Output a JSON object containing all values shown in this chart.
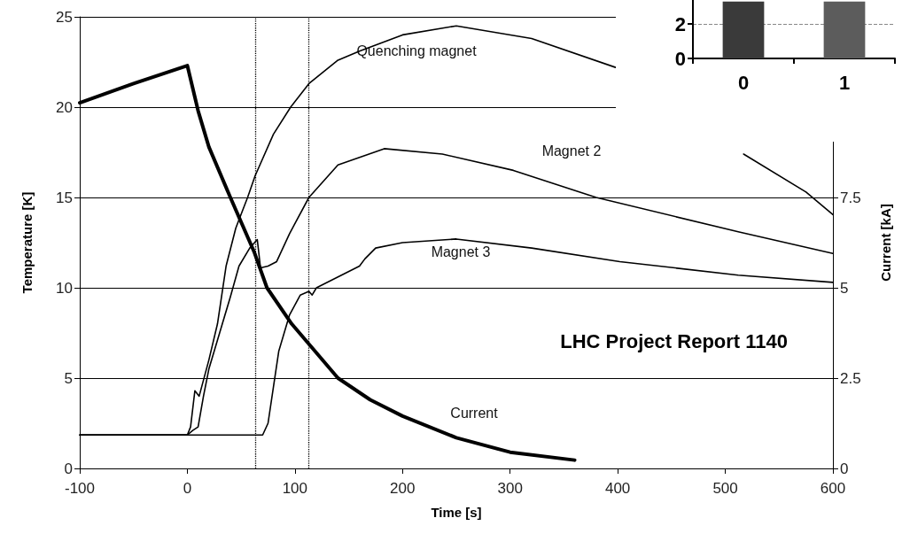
{
  "chart_data": [
    {
      "type": "line",
      "xlabel": "Time [s]",
      "ylabel": "Temperature [K]",
      "y2label": "Current [kA]",
      "xlim": [
        -100,
        600
      ],
      "xticks": [
        -100,
        0,
        100,
        200,
        300,
        400,
        500,
        600
      ],
      "ylim": [
        0,
        25
      ],
      "yticks": [
        0,
        5,
        10,
        15,
        20,
        25
      ],
      "y2lim": [
        0,
        12.5
      ],
      "y2ticks": [
        0,
        2.5,
        5,
        7.5
      ],
      "grid": "y",
      "marker": "none",
      "line_style": "solid",
      "series": [
        {
          "name": "Quenching magnet",
          "color": "#000000",
          "x": [
            -100,
            0,
            3,
            7,
            11,
            20,
            28,
            36,
            45,
            56,
            63,
            80,
            96,
            113,
            140,
            160,
            200,
            250,
            320,
            398,
            430,
            480,
            517,
            575,
            600
          ],
          "values": [
            1.85,
            1.85,
            2.3,
            4.3,
            4.0,
            6.0,
            8.0,
            11.2,
            13.3,
            15.0,
            16.2,
            18.5,
            20.0,
            21.3,
            22.6,
            23.1,
            24.0,
            24.5,
            23.8,
            22.2,
            null,
            null,
            17.4,
            15.3,
            14.05
          ]
        },
        {
          "name": "Magnet 2",
          "color": "#000000",
          "x": [
            -100,
            0,
            5,
            10,
            15,
            20,
            30,
            40,
            48,
            58,
            65,
            68,
            75,
            83,
            95,
            113,
            140,
            183,
            237,
            303,
            380,
            512,
            600
          ],
          "values": [
            1.85,
            1.85,
            2.1,
            2.3,
            4.0,
            5.5,
            7.5,
            9.5,
            11.2,
            12.2,
            12.67,
            11.1,
            11.2,
            11.45,
            13.0,
            15.0,
            16.8,
            17.7,
            17.4,
            16.5,
            15.0,
            13.1,
            11.9
          ]
        },
        {
          "name": "Magnet 3",
          "color": "#000000",
          "x": [
            -100,
            70,
            75,
            80,
            85,
            95,
            105,
            113,
            116,
            120,
            140,
            160,
            165,
            175,
            200,
            250,
            320,
            402,
            512,
            600
          ],
          "values": [
            1.85,
            1.85,
            2.5,
            4.5,
            6.5,
            8.5,
            9.6,
            9.8,
            9.6,
            10.0,
            10.6,
            11.2,
            11.6,
            12.2,
            12.5,
            12.7,
            12.2,
            11.45,
            10.7,
            10.3
          ]
        },
        {
          "name": "Current",
          "color": "#000000",
          "axis": "y2",
          "x": [
            -100,
            -50,
            0,
            10,
            20,
            40,
            62,
            74,
            97,
            120,
            140,
            170,
            200,
            250,
            300,
            360
          ],
          "values": [
            10.12,
            10.65,
            11.15,
            9.9,
            8.9,
            7.5,
            6.0,
            5.0,
            4.0,
            3.2,
            2.5,
            1.9,
            1.45,
            0.85,
            0.45,
            0.23
          ]
        }
      ],
      "ref_lines": [
        {
          "axis": "x",
          "value": 63,
          "color": "#000000",
          "line_style": "dotted"
        },
        {
          "axis": "x",
          "value": 113,
          "color": "#000000",
          "line_style": "dotted"
        }
      ],
      "annotations": [
        "LHC Project Report 1140"
      ]
    },
    {
      "type": "bar",
      "categories": [
        "0",
        "1"
      ],
      "colors": [
        "#3a3a3a",
        "#5c5c5c"
      ],
      "values": [
        3.3,
        3.3
      ],
      "ylim": [
        0,
        4
      ],
      "yticks": [
        0,
        2
      ],
      "grid": "y"
    }
  ]
}
